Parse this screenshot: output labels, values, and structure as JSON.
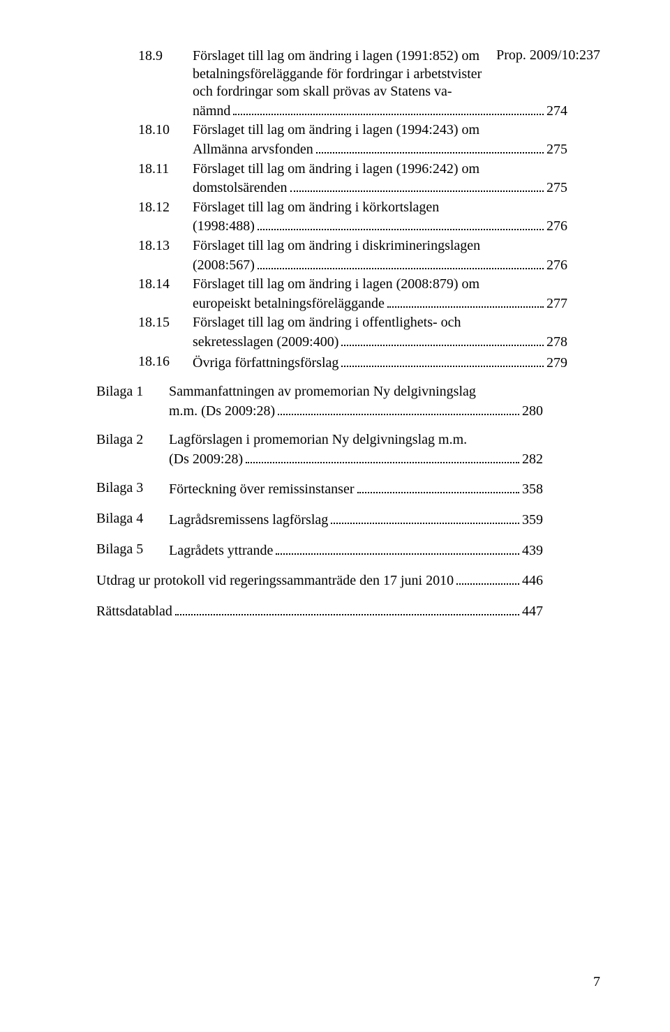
{
  "header_right": "Prop. 2009/10:237",
  "page_number": "7",
  "toc": [
    {
      "num": "18.9",
      "lines": [
        "Förslaget till lag om ändring i lagen (1991:852) om",
        "betalningsföreläggande för fordringar i arbetstvister",
        "och fordringar som skall prövas av Statens va-"
      ],
      "last": "nämnd",
      "page": "274"
    },
    {
      "num": "18.10",
      "lines": [
        "Förslaget till lag om ändring i lagen (1994:243) om"
      ],
      "last": "Allmänna arvsfonden",
      "page": "275"
    },
    {
      "num": "18.11",
      "lines": [
        "Förslaget till lag om ändring i lagen (1996:242) om"
      ],
      "last": "domstolsärenden",
      "page": "275"
    },
    {
      "num": "18.12",
      "lines": [
        "Förslaget till lag om ändring i körkortslagen"
      ],
      "last": "(1998:488)",
      "page": "276"
    },
    {
      "num": "18.13",
      "lines": [
        "Förslaget till lag om ändring i diskrimineringslagen"
      ],
      "last": "(2008:567)",
      "page": "276"
    },
    {
      "num": "18.14",
      "lines": [
        "Förslaget till lag om ändring i lagen (2008:879) om"
      ],
      "last": "europeiskt betalningsföreläggande",
      "page": "277"
    },
    {
      "num": "18.15",
      "lines": [
        "Förslaget till lag om ändring i offentlighets- och"
      ],
      "last": "sekretesslagen (2009:400)",
      "page": "278"
    },
    {
      "num": "18.16",
      "lines": [],
      "last": "Övriga författningsförslag",
      "page": "279"
    }
  ],
  "bilaga": [
    {
      "num": "Bilaga 1",
      "lines": [
        "Sammanfattningen av promemorian Ny delgivningslag"
      ],
      "last": "m.m. (Ds 2009:28)",
      "page": "280"
    },
    {
      "num": "Bilaga 2",
      "lines": [
        "Lagförslagen i promemorian Ny delgivningslag m.m."
      ],
      "last": "(Ds 2009:28)",
      "page": "282"
    },
    {
      "num": "Bilaga 3",
      "lines": [],
      "last": "Förteckning över remissinstanser",
      "page": "358"
    },
    {
      "num": "Bilaga 4",
      "lines": [],
      "last": "Lagrådsremissens lagförslag",
      "page": "359"
    },
    {
      "num": "Bilaga 5",
      "lines": [],
      "last": "Lagrådets yttrande",
      "page": "439"
    }
  ],
  "tail": [
    {
      "last": "Utdrag ur protokoll vid regeringssammanträde den 17 juni 2010",
      "page": "446"
    },
    {
      "last": "Rättsdatablad",
      "page": "447"
    }
  ]
}
